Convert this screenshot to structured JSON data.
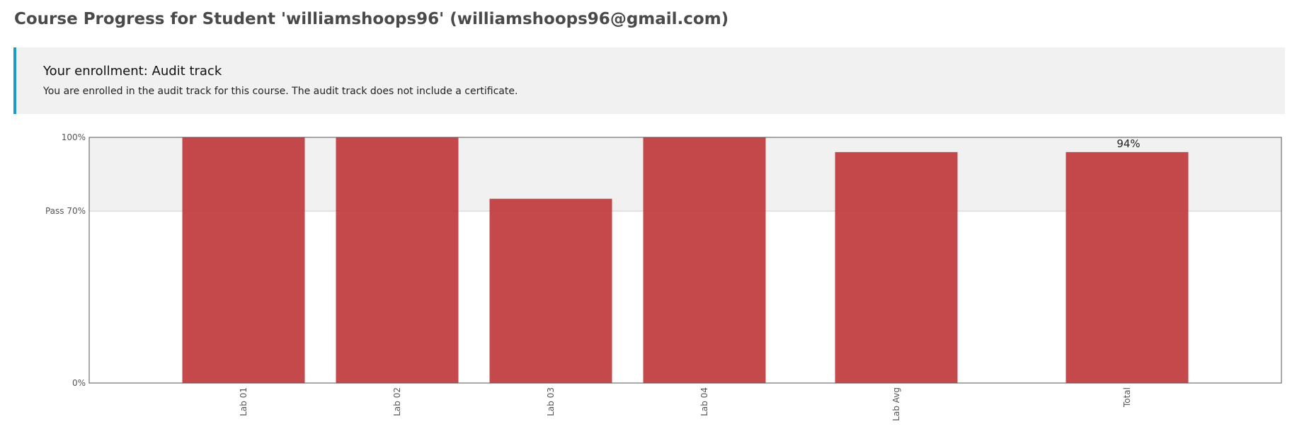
{
  "page": {
    "title": "Course Progress for Student 'williamshoops96' (williamshoops96@gmail.com)"
  },
  "enrollment": {
    "title": "Your enrollment: Audit track",
    "description": "You are enrolled in the audit track for this course. The audit track does not include a certificate."
  },
  "colors": {
    "bar": "#c0393b",
    "accent_border": "#1b9bc9",
    "pass_zone": "#f1f1f1"
  },
  "chart_data": {
    "type": "bar",
    "categories": [
      "Lab 01",
      "Lab 02",
      "Lab 03",
      "Lab 04",
      "Lab Avg",
      "Total"
    ],
    "values": [
      100,
      100,
      75,
      100,
      94,
      94
    ],
    "value_labels": [
      "",
      "",
      "",
      "",
      "",
      "94%"
    ],
    "ylim": [
      0,
      100
    ],
    "y_ticks": [
      {
        "value": 0,
        "label": "0%"
      },
      {
        "value": 70,
        "label": "Pass 70%"
      },
      {
        "value": 100,
        "label": "100%"
      }
    ],
    "pass_threshold": 70,
    "title": "",
    "xlabel": "",
    "ylabel": ""
  }
}
